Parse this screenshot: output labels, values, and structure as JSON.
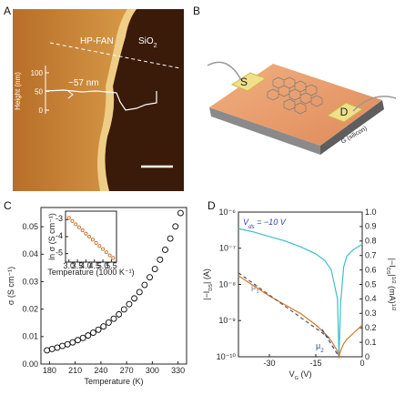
{
  "figure": {
    "panel_labels": [
      "A",
      "B",
      "C",
      "D"
    ],
    "afm": {
      "fan_label": "HP-FAN",
      "oxide_label": [
        {
          "t": "SiO"
        },
        {
          "t": "2",
          "s": "sub"
        }
      ],
      "height_axis_title": "Height (nm)",
      "height_ticks": [
        100,
        50,
        0
      ],
      "step_label": "~57 nm"
    },
    "device": {
      "source": "S",
      "drain": "D",
      "gate": "G (silicon)"
    }
  },
  "chart_data": [
    {
      "type": "scatter",
      "xlabel": [
        {
          "t": "Temperature (K)"
        }
      ],
      "ylabel": [
        {
          "t": "σ (S cm⁻¹)"
        }
      ],
      "color": "#000000",
      "x": [
        177,
        183,
        189,
        195,
        201,
        207,
        213,
        219,
        225,
        231,
        237,
        243,
        249,
        255,
        261,
        267,
        273,
        279,
        285,
        291,
        297,
        303,
        309,
        315,
        321,
        327,
        333
      ],
      "values": [
        0.005,
        0.0055,
        0.006,
        0.0066,
        0.0072,
        0.0079,
        0.0087,
        0.0095,
        0.0104,
        0.0114,
        0.0125,
        0.0137,
        0.0151,
        0.0165,
        0.0181,
        0.0199,
        0.0218,
        0.0239,
        0.0262,
        0.0288,
        0.0316,
        0.0346,
        0.038,
        0.0416,
        0.0457,
        0.0501,
        0.055
      ],
      "xlim": [
        170,
        340
      ],
      "xticks": [
        180,
        210,
        240,
        270,
        300,
        330
      ],
      "ylim": [
        0,
        0.057
      ],
      "yticks": [
        {
          "value": 0,
          "label": "0.00"
        },
        0.01,
        0.02,
        0.03,
        0.04,
        0.05
      ]
    },
    {
      "type": "scatter",
      "xlabel": [
        {
          "t": "Temperature (1000 K⁻¹)"
        }
      ],
      "ylabel": [
        {
          "t": "ln σ (S cm⁻¹)"
        }
      ],
      "color": "#c8702a",
      "x": [
        3.0,
        3.2,
        3.4,
        3.6,
        3.8,
        4.0,
        4.2,
        4.4,
        4.6,
        4.8,
        5.0,
        5.2,
        5.4,
        5.6
      ],
      "values": [
        -2.9,
        -3.08,
        -3.27,
        -3.45,
        -3.63,
        -3.82,
        -4.0,
        -4.18,
        -4.37,
        -4.55,
        -4.73,
        -4.92,
        -5.1,
        -5.25
      ],
      "xlim": [
        2.8,
        5.8
      ],
      "xticks": [
        {
          "value": 3,
          "label": "3.0"
        },
        3.5,
        {
          "value": 4,
          "label": "4.0"
        },
        4.5,
        {
          "value": 5,
          "label": "5.0"
        },
        5.5
      ],
      "ylim": [
        -5.5,
        -2.5
      ],
      "yticks": [
        -3,
        -4,
        -5
      ]
    },
    {
      "type": "line",
      "xlabel": [
        {
          "t": "V"
        },
        {
          "t": "G",
          "s": "sub"
        },
        {
          "t": " (V)"
        }
      ],
      "ylabel": [
        {
          "t": "|−I"
        },
        {
          "t": "DS",
          "s": "sub"
        },
        {
          "t": "| (A)"
        }
      ],
      "y2label": [
        {
          "t": "|−I"
        },
        {
          "t": "DS",
          "s": "sub"
        },
        {
          "t": "|"
        },
        {
          "t": "1/2",
          "s": "sup"
        },
        {
          "t": " (mA)"
        },
        {
          "t": "1/2",
          "s": "sup"
        }
      ],
      "annotations": {
        "vds": [
          {
            "t": "V"
          },
          {
            "t": "ds",
            "s": "sub"
          },
          {
            "t": " = −10 V"
          }
        ],
        "mu1": [
          {
            "t": "μ"
          },
          {
            "t": "1",
            "s": "sub"
          }
        ],
        "mu2": [
          {
            "t": "μ"
          },
          {
            "t": "2",
            "s": "sub"
          }
        ]
      },
      "x": [
        -40,
        -35,
        -30,
        -25,
        -20,
        -15,
        -12,
        -10,
        -8,
        -7.5,
        -7,
        -6,
        -5,
        -3,
        0
      ],
      "series": [
        {
          "color": "#3cc0c8",
          "values": [
            3.5e-07,
            2.8e-07,
            2.1e-07,
            1.6e-07,
            1.1e-07,
            7e-08,
            4.5e-08,
            2.5e-08,
            4e-09,
            1e-10,
            3e-09,
            3e-08,
            6e-08,
            9e-08,
            1.3e-07
          ]
        },
        {
          "color": "#d9782a",
          "axis": "y2",
          "values": [
            0.56,
            0.49,
            0.42,
            0.36,
            0.3,
            0.22,
            0.16,
            0.11,
            0.04,
            0,
            0.04,
            0.09,
            0.12,
            0.16,
            0.22
          ]
        },
        {
          "color": "#555555",
          "axis": "y2",
          "dashed": true,
          "x": [
            -40,
            -10
          ],
          "values": [
            0.58,
            0.12
          ]
        },
        {
          "color": "#2d3fa0",
          "axis": "y2",
          "dashed": true,
          "x": [
            -13,
            -7.5
          ],
          "values": [
            0.19,
            0
          ]
        }
      ],
      "xlim": [
        -40,
        0
      ],
      "xticks": [
        -30,
        -15,
        0
      ],
      "ylog": true,
      "ylim": [
        1e-10,
        1e-06
      ],
      "yticks": [
        {
          "value": 1e-10,
          "label": "10⁻¹⁰"
        },
        {
          "value": 1e-09,
          "label": "10⁻⁹"
        },
        {
          "value": 1e-08,
          "label": "10⁻⁸"
        },
        {
          "value": 1e-07,
          "label": "10⁻⁷"
        },
        {
          "value": 1e-06,
          "label": "10⁻⁶"
        }
      ],
      "y2lim": [
        0,
        1
      ],
      "y2ticks": [
        0,
        0.1,
        0.2,
        0.3,
        0.4,
        0.5,
        0.6,
        0.7,
        0.8,
        0.9,
        {
          "value": 1,
          "label": "1.0"
        }
      ]
    }
  ]
}
